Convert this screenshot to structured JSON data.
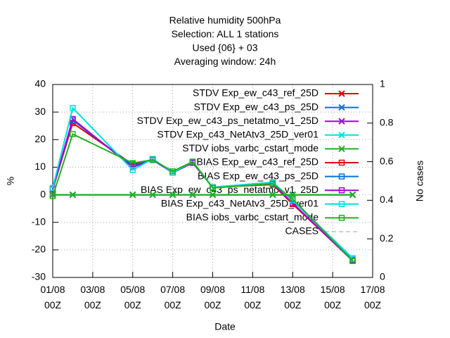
{
  "chart_data": {
    "type": "line",
    "title_lines": [
      "Relative humidity 500hPa",
      "Selection: ALL      1 stations",
      "Used {06} + 03",
      "Averaging window: 24h"
    ],
    "xlabel": "Date",
    "ylabel": "%",
    "y2label": "No cases",
    "xlim": [
      1,
      17
    ],
    "xticks": [
      {
        "value": 1,
        "label": "01/08\n00Z"
      },
      {
        "value": 3,
        "label": "03/08\n00Z"
      },
      {
        "value": 5,
        "label": "05/08\n00Z"
      },
      {
        "value": 7,
        "label": "07/08\n00Z"
      },
      {
        "value": 9,
        "label": "09/08\n00Z"
      },
      {
        "value": 11,
        "label": "11/08\n00Z"
      },
      {
        "value": 13,
        "label": "13/08\n00Z"
      },
      {
        "value": 15,
        "label": "15/08\n00Z"
      },
      {
        "value": 17,
        "label": "17/08\n00Z"
      }
    ],
    "ylim": [
      -30,
      40
    ],
    "yticks": [
      -30,
      -20,
      -10,
      0,
      10,
      20,
      30,
      40
    ],
    "y2lim": [
      0,
      1
    ],
    "y2ticks": [
      0,
      0.2,
      0.4,
      0.6,
      0.8,
      1
    ],
    "grid": true,
    "x": [
      1,
      2,
      5,
      6,
      7,
      8,
      9,
      12,
      13,
      16
    ],
    "series": [
      {
        "name": "STDV Exp_ew_c43_ref_25D",
        "color": "#e00000",
        "marker": "x",
        "values": [
          0,
          0,
          0,
          0,
          0,
          0,
          0,
          0,
          0,
          0
        ]
      },
      {
        "name": "STDV Exp_ew_c43_ps_25D",
        "color": "#0070e0",
        "marker": "x",
        "values": [
          0,
          0,
          0,
          0,
          0,
          0,
          0,
          0,
          0,
          0
        ]
      },
      {
        "name": "STDV Exp_ew_c43_ps_netatmo_v1_25D",
        "color": "#a000e0",
        "marker": "x",
        "values": [
          0,
          0,
          0,
          0,
          0,
          0,
          0,
          0,
          0,
          0
        ]
      },
      {
        "name": "STDV Exp_c43_NetAtv3_25D_ver01",
        "color": "#00e0e0",
        "marker": "x",
        "values": [
          0,
          0,
          0,
          0,
          0,
          0,
          0,
          0,
          0,
          0
        ]
      },
      {
        "name": "STDV iobs_varbc_cstart_mode",
        "color": "#20b020",
        "marker": "x",
        "values": [
          0,
          0,
          0,
          0,
          0,
          0,
          0,
          0,
          0,
          0
        ]
      },
      {
        "name": "BIAS Exp_ew_c43_ref_25D",
        "color": "#e00000",
        "marker": "square",
        "values": [
          2,
          26,
          11,
          12.7,
          8,
          11.6,
          2.7,
          3.7,
          -3.4,
          -23.8
        ]
      },
      {
        "name": "BIAS Exp_ew_c43_ps_25D",
        "color": "#0070e0",
        "marker": "square",
        "values": [
          2,
          27,
          10.5,
          12.6,
          8,
          11.6,
          2.7,
          4.5,
          -2,
          -23.5
        ]
      },
      {
        "name": "BIAS Exp_ew_c43_ps_netatmo_v1_25D",
        "color": "#a000e0",
        "marker": "square",
        "values": [
          2,
          27.5,
          10,
          12.7,
          8,
          11.6,
          2.7,
          4,
          -3,
          -24
        ]
      },
      {
        "name": "BIAS Exp_c43_NetAtv3_25D_ver01",
        "color": "#00e0e0",
        "marker": "square",
        "values": [
          2.5,
          31.5,
          9,
          13,
          8,
          12,
          2.7,
          4.5,
          -2,
          -23
        ]
      },
      {
        "name": "BIAS iobs_varbc_cstart_mode",
        "color": "#20b020",
        "marker": "square",
        "values": [
          -0.5,
          22,
          11.5,
          12.7,
          8.5,
          12,
          2.5,
          4,
          -1.5,
          -24
        ]
      },
      {
        "name": "CASES",
        "color": "#a0a0a0",
        "marker": "none",
        "axis": "y2",
        "dash": true,
        "values": [
          null,
          null,
          null,
          null,
          null,
          null,
          null,
          null,
          null,
          null
        ]
      }
    ]
  }
}
